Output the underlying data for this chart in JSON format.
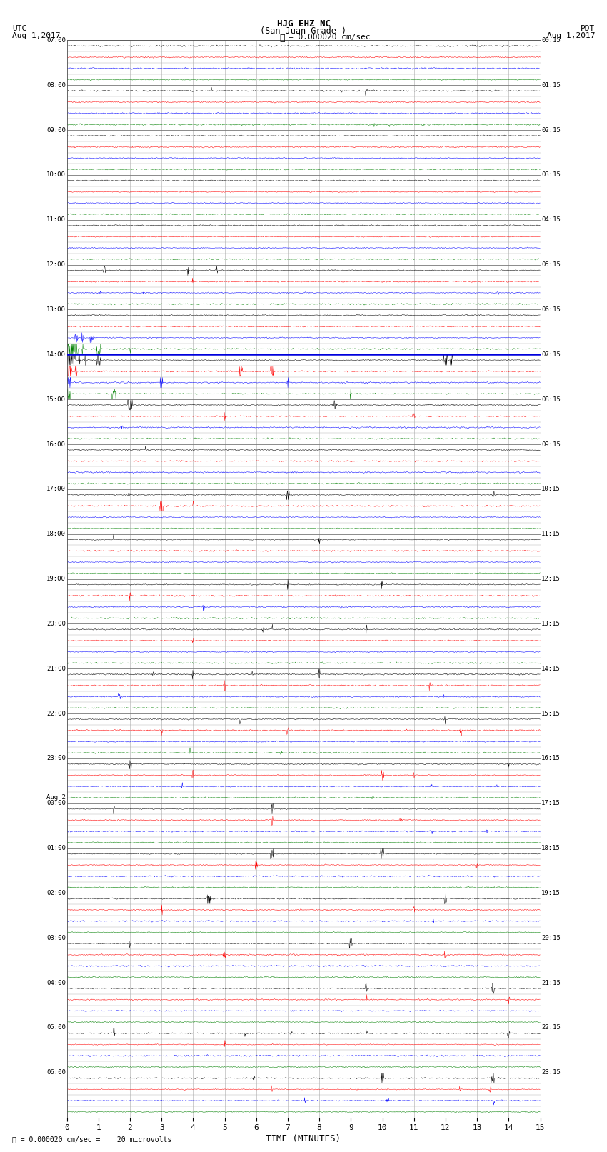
{
  "title_line1": "HJG EHZ NC",
  "title_line2": "(San Juan Grade )",
  "scale_text": "= 0.000020 cm/sec",
  "footer_text": "= 0.000020 cm/sec =    20 microvolts",
  "left_label_top": "UTC",
  "left_label_date": "Aug 1,2017",
  "right_label_top": "PDT",
  "right_label_date": "Aug 1,2017",
  "xlabel": "TIME (MINUTES)",
  "num_rows": 96,
  "xmin": 0,
  "xmax": 15,
  "trace_colors_cycle": [
    "black",
    "red",
    "blue",
    "green"
  ],
  "background_color": "white",
  "grid_color": "#aaaaaa",
  "hour_grid_color": "#777777",
  "blue_line_row": 28,
  "blue_line_color": "#0000dd",
  "fig_width": 8.5,
  "fig_height": 16.13,
  "dpi": 100,
  "hour_labels_left": [
    "07:00",
    "08:00",
    "09:00",
    "10:00",
    "11:00",
    "12:00",
    "13:00",
    "14:00",
    "15:00",
    "16:00",
    "17:00",
    "18:00",
    "19:00",
    "20:00",
    "21:00",
    "22:00",
    "23:00",
    "00:00",
    "01:00",
    "02:00",
    "03:00",
    "04:00",
    "05:00",
    "06:00"
  ],
  "hour_labels_right": [
    "00:15",
    "01:15",
    "02:15",
    "03:15",
    "04:15",
    "05:15",
    "06:15",
    "07:15",
    "08:15",
    "09:15",
    "10:15",
    "11:15",
    "12:15",
    "13:15",
    "14:15",
    "15:15",
    "16:15",
    "17:15",
    "18:15",
    "19:15",
    "20:15",
    "21:15",
    "22:15",
    "23:15"
  ],
  "aug2_row": 68
}
